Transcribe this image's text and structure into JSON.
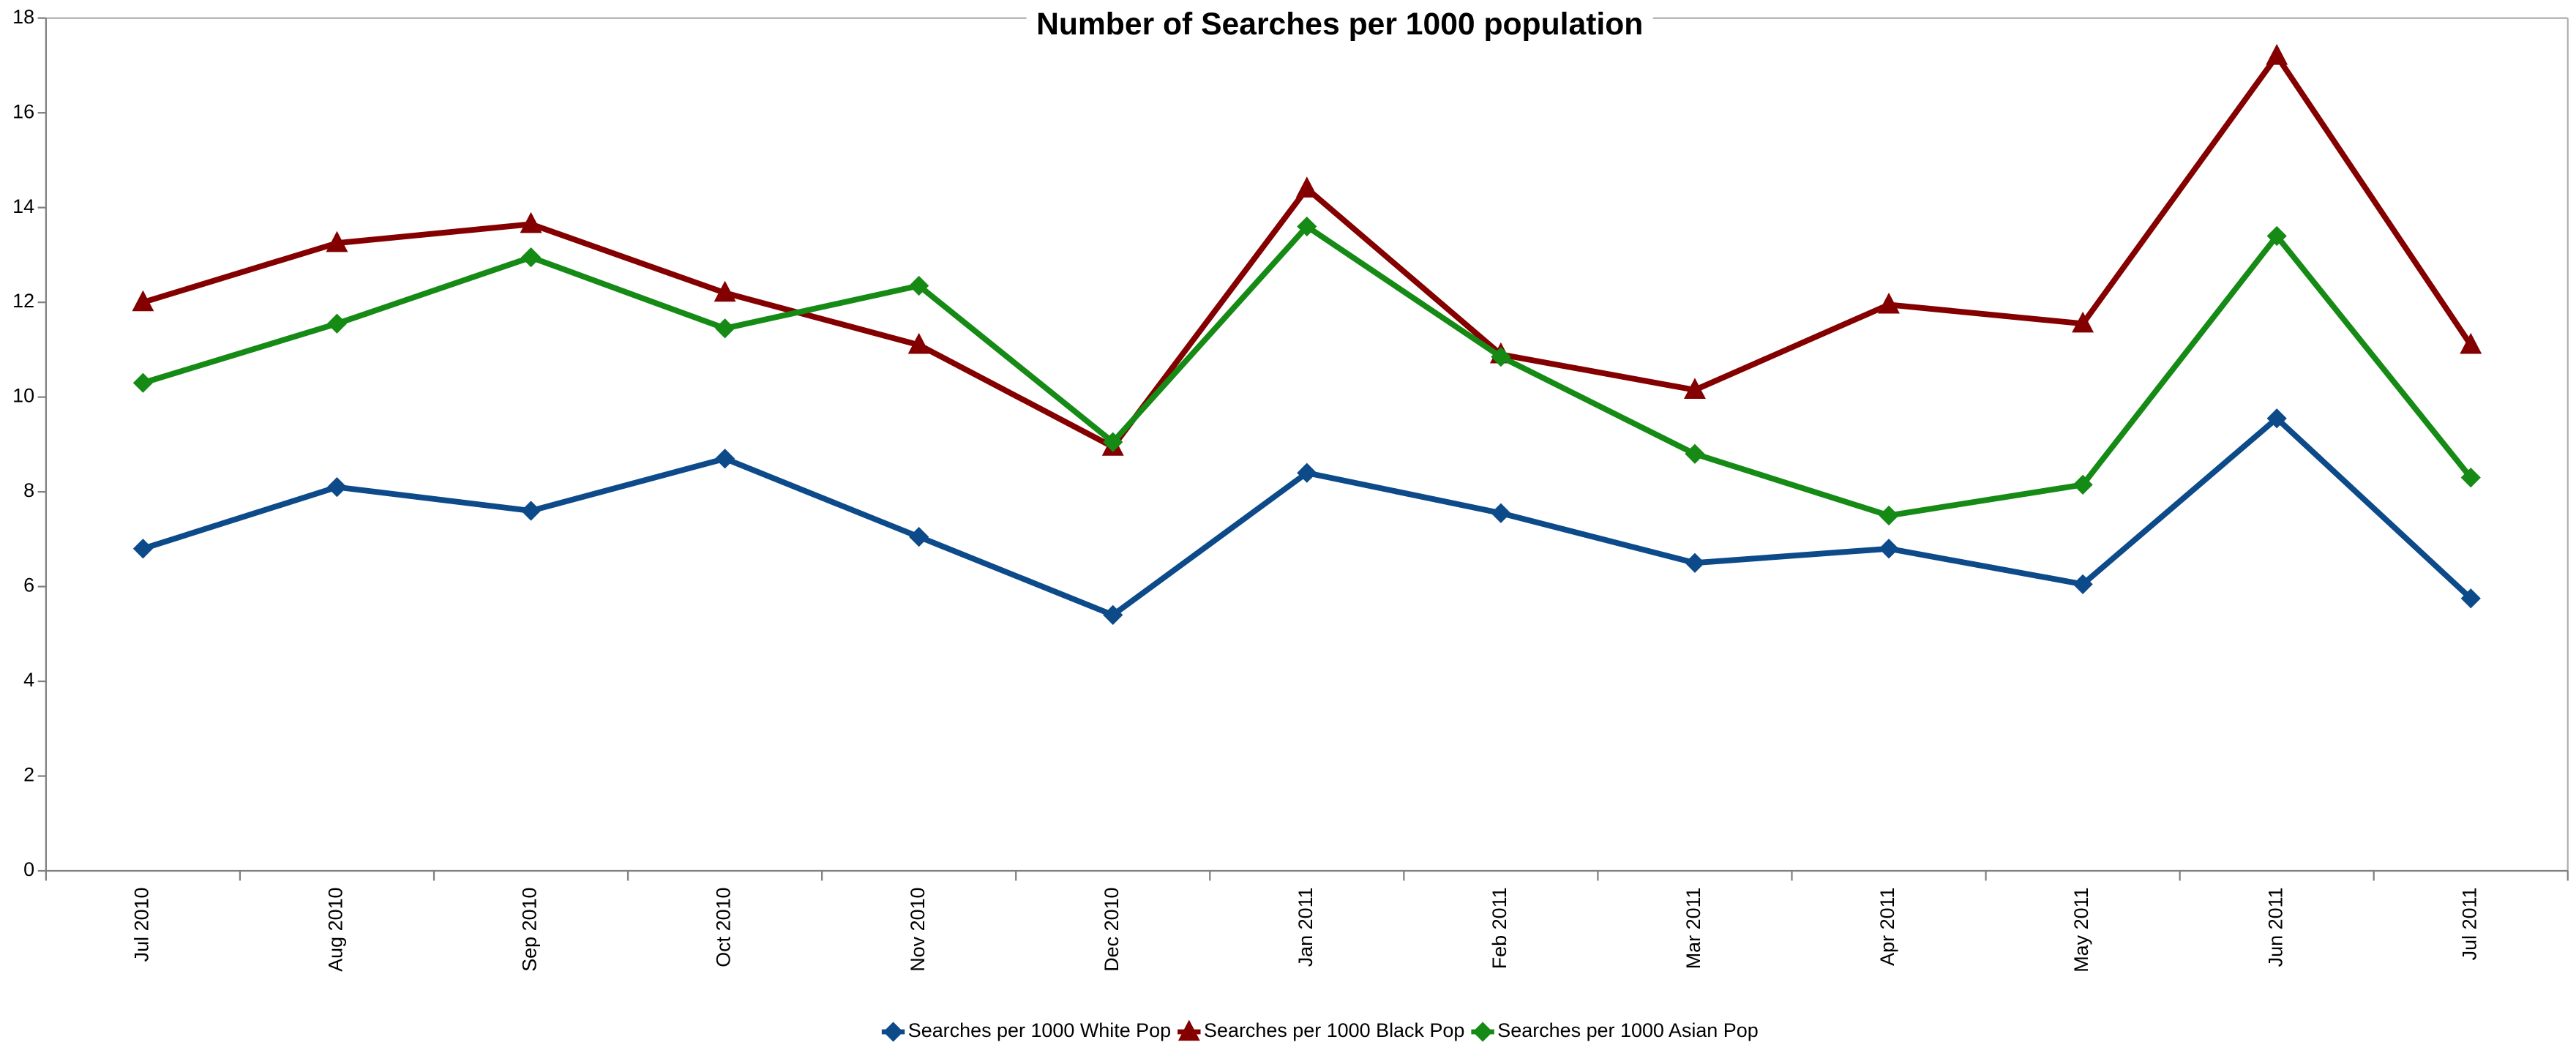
{
  "chart_data": {
    "type": "line",
    "title": "Number of Searches per 1000 population",
    "categories": [
      "Jul 2010",
      "Aug 2010",
      "Sep 2010",
      "Oct 2010",
      "Nov 2010",
      "Dec 2010",
      "Jan 2011",
      "Feb 2011",
      "Mar 2011",
      "Apr 2011",
      "May 2011",
      "Jun 2011",
      "Jul 2011"
    ],
    "series": [
      {
        "name": "Searches per 1000 White Pop",
        "color": "#0d4a8a",
        "marker": "diamond",
        "values": [
          6.8,
          8.1,
          7.6,
          8.7,
          7.05,
          5.4,
          8.4,
          7.55,
          6.5,
          6.8,
          6.05,
          9.55,
          5.75
        ]
      },
      {
        "name": "Searches per 1000 Black Pop",
        "color": "#840000",
        "marker": "triangle",
        "values": [
          12.0,
          13.25,
          13.65,
          12.2,
          11.1,
          8.95,
          14.4,
          10.9,
          10.15,
          11.95,
          11.55,
          17.2,
          11.1
        ]
      },
      {
        "name": "Searches per 1000 Asian Pop",
        "color": "#158a15",
        "marker": "diamond",
        "values": [
          10.3,
          11.55,
          12.95,
          11.45,
          12.35,
          9.05,
          13.6,
          10.85,
          8.8,
          7.5,
          8.15,
          13.4,
          8.3
        ]
      }
    ],
    "ylim": [
      0,
      18
    ],
    "yticks": [
      0,
      2,
      4,
      6,
      8,
      10,
      12,
      14,
      16,
      18
    ],
    "grid": false,
    "legend": "bottom"
  }
}
